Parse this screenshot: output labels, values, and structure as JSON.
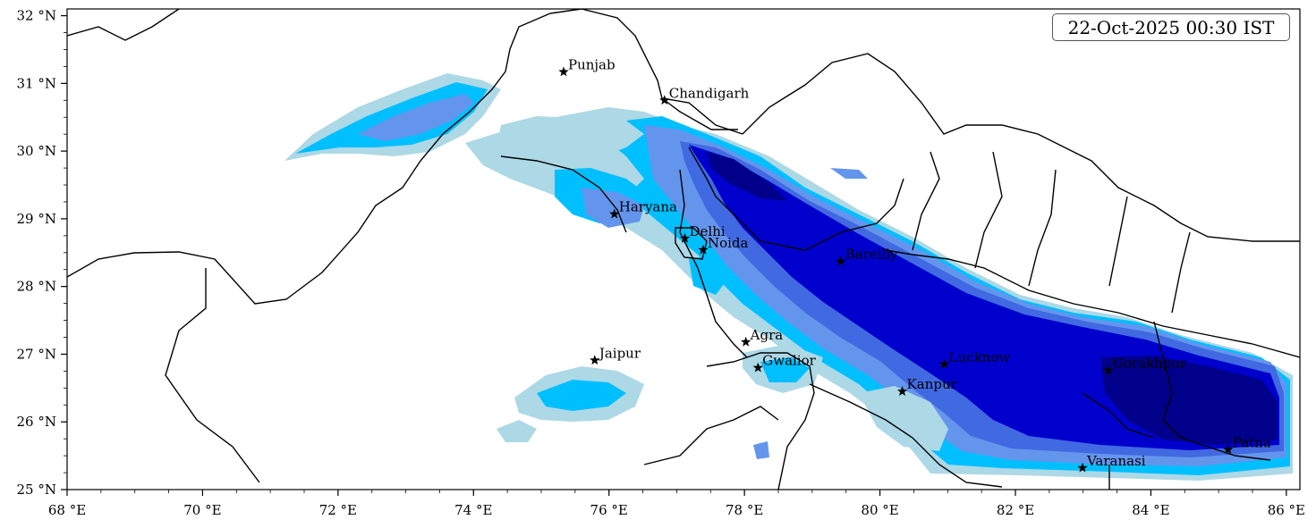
{
  "timestamp": "22-Oct-2025 00:30 IST",
  "axes": {
    "x_ticks": [
      {
        "value": 68,
        "label": "68 °E"
      },
      {
        "value": 70,
        "label": "70 °E"
      },
      {
        "value": 72,
        "label": "72 °E"
      },
      {
        "value": 74,
        "label": "74 °E"
      },
      {
        "value": 76,
        "label": "76 °E"
      },
      {
        "value": 78,
        "label": "78 °E"
      },
      {
        "value": 80,
        "label": "80 °E"
      },
      {
        "value": 82,
        "label": "82 °E"
      },
      {
        "value": 84,
        "label": "84 °E"
      },
      {
        "value": 86,
        "label": "86 °E"
      }
    ],
    "y_ticks": [
      {
        "value": 25,
        "label": "25 °N"
      },
      {
        "value": 26,
        "label": "26 °N"
      },
      {
        "value": 27,
        "label": "27 °N"
      },
      {
        "value": 28,
        "label": "28 °N"
      },
      {
        "value": 29,
        "label": "29 °N"
      },
      {
        "value": 30,
        "label": "30 °N"
      },
      {
        "value": 31,
        "label": "31 °N"
      },
      {
        "value": 32,
        "label": "32 °N"
      }
    ],
    "lon_range": [
      68,
      86.2
    ],
    "lat_range": [
      25,
      32.1
    ]
  },
  "cities": [
    {
      "name": "Punjab",
      "lon": 75.33,
      "lat": 31.17
    },
    {
      "name": "Chandigarh",
      "lon": 76.82,
      "lat": 30.75
    },
    {
      "name": "Haryana",
      "lon": 76.08,
      "lat": 29.07
    },
    {
      "name": "Delhi",
      "lon": 77.12,
      "lat": 28.71
    },
    {
      "name": "Noida",
      "lon": 77.39,
      "lat": 28.54
    },
    {
      "name": "Bareilly",
      "lon": 79.42,
      "lat": 28.37
    },
    {
      "name": "Agra",
      "lon": 78.02,
      "lat": 27.18
    },
    {
      "name": "Jaipur",
      "lon": 75.79,
      "lat": 26.91
    },
    {
      "name": "Gwalior",
      "lon": 78.2,
      "lat": 26.8
    },
    {
      "name": "Lucknow",
      "lon": 80.95,
      "lat": 26.85
    },
    {
      "name": "Kanpur",
      "lon": 80.33,
      "lat": 26.45
    },
    {
      "name": "Gorakhpur",
      "lon": 83.37,
      "lat": 26.76
    },
    {
      "name": "Varanasi",
      "lon": 82.99,
      "lat": 25.32
    },
    {
      "name": "Patna",
      "lon": 85.14,
      "lat": 25.59
    }
  ],
  "palette": {
    "level1": "#add8e6",
    "level2": "#00bfff",
    "level3": "#6495ed",
    "level4": "#4169e1",
    "level5": "#0000cd",
    "level6": "#00008b"
  }
}
